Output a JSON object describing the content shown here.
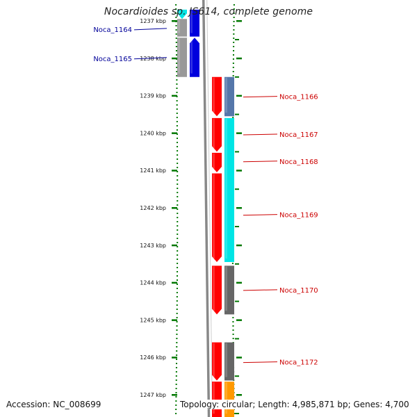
{
  "title": "Nocardioides sp. JS614, complete genome",
  "footer": {
    "accession": "Accession: NC_008699",
    "stats": "Topology: circular; Length: 4,985,871 bp; Genes: 4,700"
  },
  "colors": {
    "red": "#ff0000",
    "blue": "#0000dd",
    "cyan": "#00e5e5",
    "gray": "#999999",
    "dark_gray": "#666666",
    "steel_blue": "#5577aa",
    "orange": "#ff9900",
    "tick_green": "#007700",
    "label_blue": "#000099",
    "label_red": "#cc0000"
  },
  "ticks": [
    {
      "label": "1237 kbp",
      "kbp": 1237
    },
    {
      "label": "1238 kbp",
      "kbp": 1238
    },
    {
      "label": "1239 kbp",
      "kbp": 1239
    },
    {
      "label": "1240 kbp",
      "kbp": 1240
    },
    {
      "label": "1241 kbp",
      "kbp": 1241
    },
    {
      "label": "1242 kbp",
      "kbp": 1242
    },
    {
      "label": "1243 kbp",
      "kbp": 1243
    },
    {
      "label": "1244 kbp",
      "kbp": 1244
    },
    {
      "label": "1245 kbp",
      "kbp": 1245
    },
    {
      "label": "1246 kbp",
      "kbp": 1246
    },
    {
      "label": "1247 kbp",
      "kbp": 1247
    }
  ],
  "gene_labels": [
    {
      "text": "Noca_1164",
      "strand": "left",
      "color": "label_blue",
      "kbp": 1237.22
    },
    {
      "text": "Noca_1165",
      "strand": "left",
      "color": "label_blue",
      "kbp": 1238.0
    },
    {
      "text": "Noca_1166",
      "strand": "right",
      "color": "label_red",
      "kbp": 1239.02
    },
    {
      "text": "Noca_1167",
      "strand": "right",
      "color": "label_red",
      "kbp": 1240.03
    },
    {
      "text": "Noca_1168",
      "strand": "right",
      "color": "label_red",
      "kbp": 1240.75
    },
    {
      "text": "Noca_1169",
      "strand": "right",
      "color": "label_red",
      "kbp": 1242.18
    },
    {
      "text": "Noca_1170",
      "strand": "right",
      "color": "label_red",
      "kbp": 1244.19
    },
    {
      "text": "Noca_1172",
      "strand": "right",
      "color": "label_red",
      "kbp": 1246.12
    }
  ],
  "genes": [
    {
      "strand": "left",
      "color": "cyan",
      "start": 1236.7,
      "end": 1236.95,
      "arrow": "down"
    },
    {
      "strand": "left",
      "color": "gray",
      "start": 1236.95,
      "end": 1237.42,
      "arrow": "none"
    },
    {
      "strand": "left",
      "color": "gray",
      "start": 1237.45,
      "end": 1238.5,
      "arrow": "none"
    },
    {
      "strand": "left",
      "color": "blue",
      "start": 1236.7,
      "end": 1237.42,
      "arrow": "none"
    },
    {
      "strand": "left",
      "color": "blue",
      "start": 1237.45,
      "end": 1238.5,
      "arrow": "up"
    },
    {
      "strand": "right",
      "color": "red",
      "start": 1238.5,
      "end": 1239.55,
      "arrow": "down"
    },
    {
      "strand": "right",
      "color": "steel_blue",
      "start": 1238.5,
      "end": 1239.55,
      "arrow": "none"
    },
    {
      "strand": "right",
      "color": "red",
      "start": 1239.6,
      "end": 1240.5,
      "arrow": "down"
    },
    {
      "strand": "right",
      "color": "red",
      "start": 1240.53,
      "end": 1241.05,
      "arrow": "down"
    },
    {
      "strand": "right",
      "color": "red",
      "start": 1241.08,
      "end": 1243.45,
      "arrow": "down"
    },
    {
      "strand": "right",
      "color": "cyan",
      "start": 1239.6,
      "end": 1243.45,
      "arrow": "none"
    },
    {
      "strand": "right",
      "color": "red",
      "start": 1243.55,
      "end": 1244.85,
      "arrow": "down"
    },
    {
      "strand": "right",
      "color": "dark_gray",
      "start": 1243.55,
      "end": 1244.85,
      "arrow": "none"
    },
    {
      "strand": "right",
      "color": "red",
      "start": 1245.6,
      "end": 1246.62,
      "arrow": "down"
    },
    {
      "strand": "right",
      "color": "dark_gray",
      "start": 1245.6,
      "end": 1246.62,
      "arrow": "none"
    },
    {
      "strand": "right",
      "color": "red",
      "start": 1246.65,
      "end": 1247.6,
      "arrow": "none"
    },
    {
      "strand": "right",
      "color": "orange",
      "start": 1246.65,
      "end": 1247.6,
      "arrow": "none"
    }
  ]
}
